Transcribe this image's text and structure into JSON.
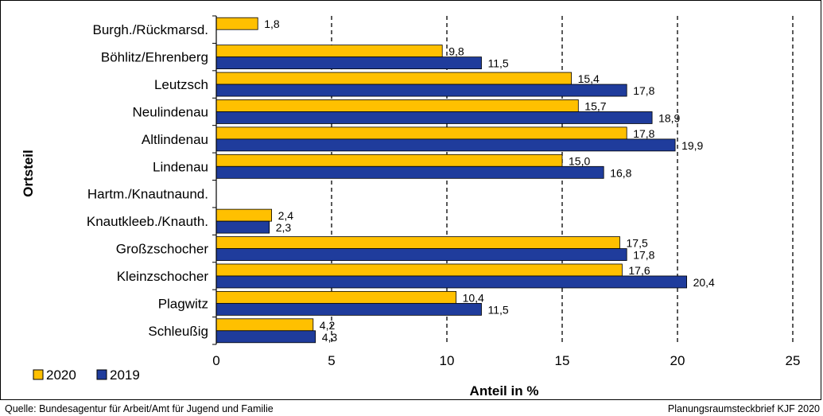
{
  "colors": {
    "series_2020": "#FFC000",
    "series_2019": "#1F3C9C"
  },
  "chart_data": {
    "type": "bar",
    "orientation": "horizontal",
    "xlabel": "Anteil in %",
    "ylabel": "Ortsteil",
    "xlim": [
      0,
      25
    ],
    "xticks": [
      "0",
      "5",
      "10",
      "15",
      "20",
      "25"
    ],
    "grid": "vertical dashed",
    "legend_position": "bottom-left",
    "categories": [
      "Burgh./Rückmarsd.",
      "Böhlitz/Ehrenberg",
      "Leutzsch",
      "Neulindenau",
      "Altlindenau",
      "Lindenau",
      "Hartm./Knautnaund.",
      "Knautkleeb./Knauth.",
      "Großzschocher",
      "Kleinzschocher",
      "Plagwitz",
      "Schleußig"
    ],
    "series": [
      {
        "name": "2020",
        "values": [
          1.8,
          9.8,
          15.4,
          15.7,
          17.8,
          15.0,
          null,
          2.4,
          17.5,
          17.6,
          10.4,
          4.2
        ],
        "labels": [
          "1,8",
          "9,8",
          "15,4",
          "15,7",
          "17,8",
          "15,0",
          "",
          "2,4",
          "17,5",
          "17,6",
          "10,4",
          "4,2"
        ]
      },
      {
        "name": "2019",
        "values": [
          null,
          11.5,
          17.8,
          18.9,
          19.9,
          16.8,
          null,
          2.3,
          17.8,
          20.4,
          11.5,
          4.3
        ],
        "labels": [
          "",
          "11,5",
          "17,8",
          "18,9",
          "19,9",
          "16,8",
          "",
          "2,3",
          "17,8",
          "20,4",
          "11,5",
          "4,3"
        ]
      }
    ]
  },
  "footer": {
    "source": "Quelle:  Bundesagentur für Arbeit/Amt für Jugend und Familie",
    "credit": "Planungsraumsteckbrief KJF 2020"
  }
}
